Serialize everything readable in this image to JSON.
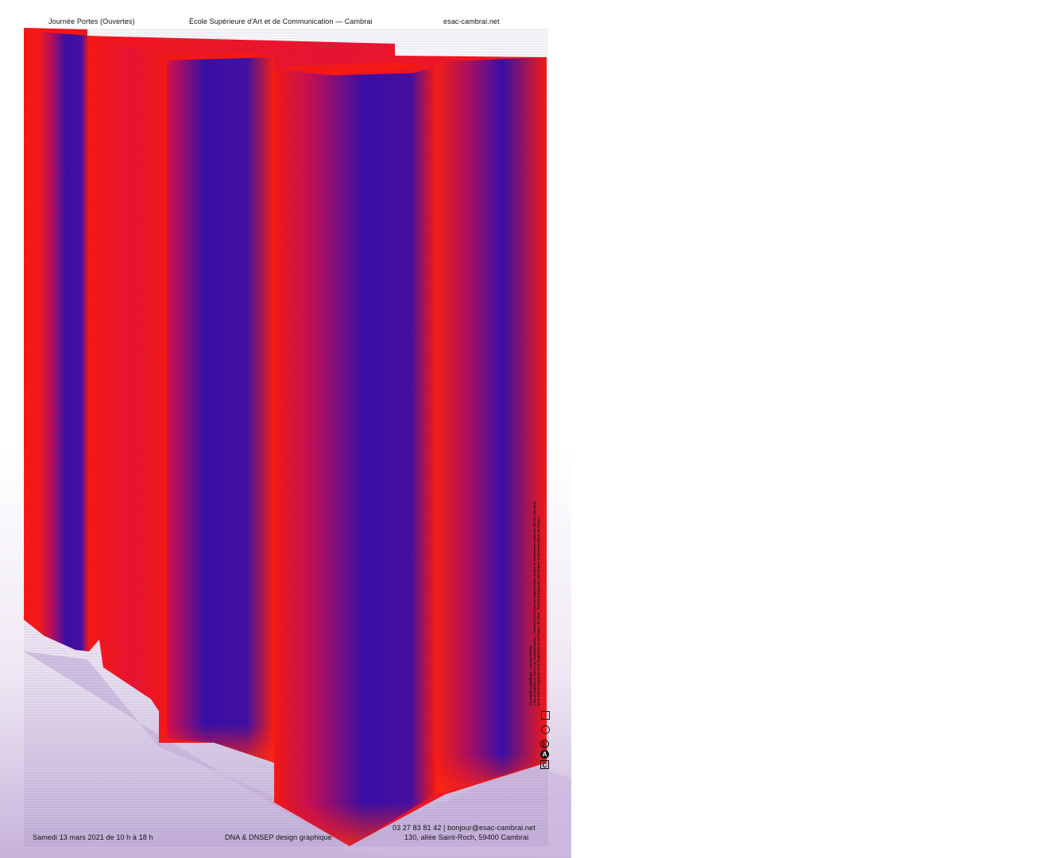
{
  "header": {
    "event": "Journée Portes (Ouvertes)",
    "school": "École Supérieure d'Art et de Communication — Cambrai",
    "website": "esac-cambrai.net"
  },
  "footer": {
    "date": "Samedi 13 mars 2021 de 10 h à 18 h",
    "program": "DNA & DNSEP design graphique",
    "contact": "03 27 83 81 42  |  bonjour@esac-cambrai.net",
    "address": "130, allée Saint-Roch, 59400 Cambrai"
  },
  "credits": {
    "line1": "Conception graphique : Antoine Demey",
    "line2": "L'École supérieure d'art et de communication - Cambrai (ÉSAC) est un Établissement public de coopération culturelle (EPCC) constitué",
    "line3": "de la ville de Cambrai, de la Région Hauts-de-France, de l'État - Direction Régionale des Affaires Culturelles Hauts-de-France."
  },
  "logo": {
    "letters": [
      "E",
      "A",
      "C"
    ]
  },
  "colors": {
    "red": "#ff1a10",
    "blue": "#3a10a8",
    "shadow": "#c8b4dc"
  }
}
